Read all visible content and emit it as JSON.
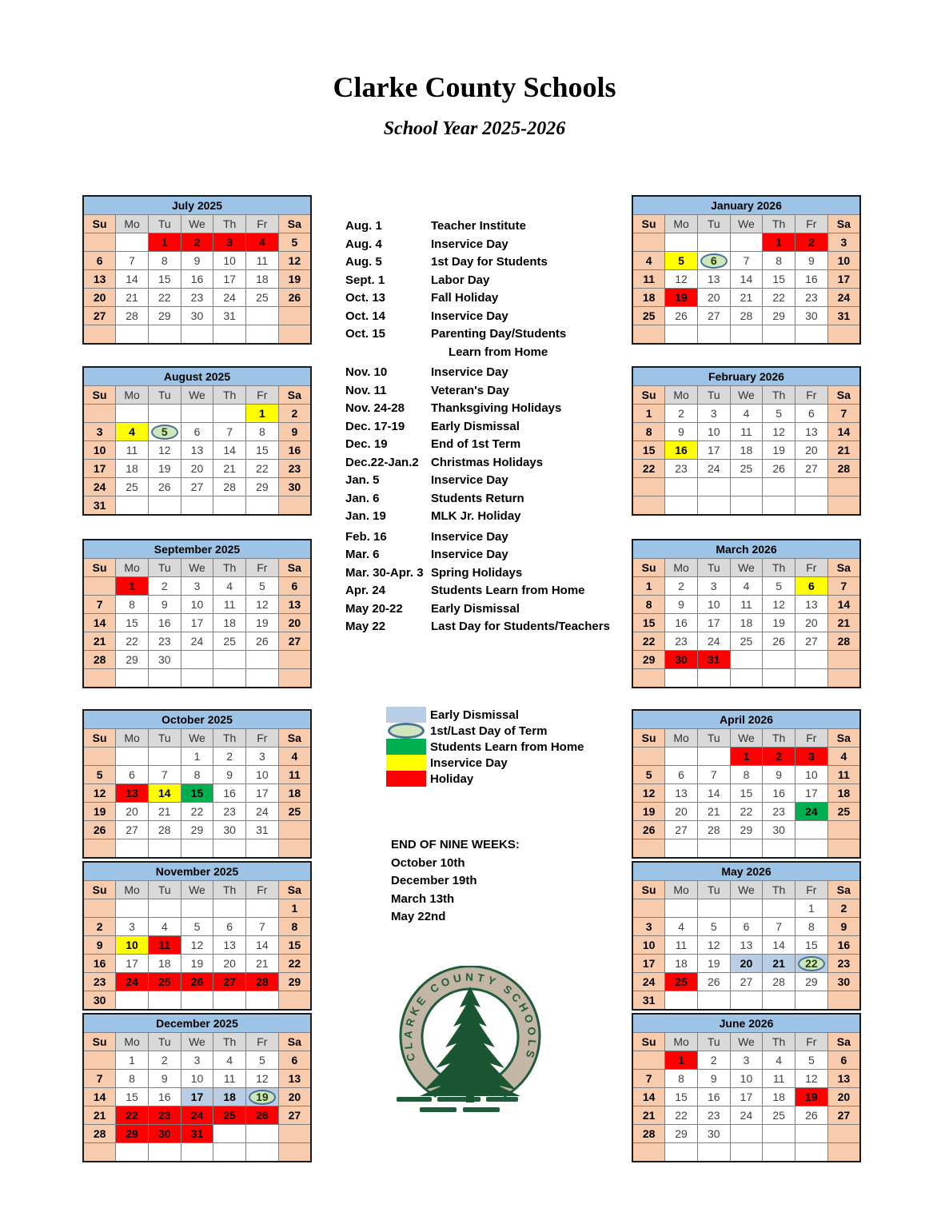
{
  "page": {
    "title": "Clarke County Schools",
    "subtitle": "School Year 2025-2026"
  },
  "colors": {
    "month_header_blue": "#9DC3E6",
    "weekend_peach": "#F8CBAD",
    "weekday_header_gray": "#D9D9D9",
    "holiday_red": "#FF0000",
    "inservice_yellow": "#FFFF00",
    "learn_from_home_green": "#00B050",
    "early_dismissal_blue": "#B9CDE5",
    "term_oval_fill": "#cfe6bc",
    "term_oval_border": "#4a7296",
    "logo_green": "#1F5C3B",
    "logo_tan": "#C4B6A5"
  },
  "day_headers": [
    "Su",
    "Mo",
    "Tu",
    "We",
    "Th",
    "Fr",
    "Sa"
  ],
  "months_left": [
    {
      "title": "July 2025",
      "weeks": [
        [
          "",
          "",
          "1|h",
          "2|h",
          "3|h",
          "4|h",
          "5"
        ],
        [
          "6",
          "7",
          "8",
          "9",
          "10",
          "11",
          "12"
        ],
        [
          "13",
          "14",
          "15",
          "16",
          "17",
          "18",
          "19"
        ],
        [
          "20",
          "21",
          "22",
          "23",
          "24",
          "25",
          "26"
        ],
        [
          "27",
          "28",
          "29",
          "30",
          "31",
          "",
          ""
        ],
        [
          "",
          "",
          "",
          "",
          "",
          "",
          ""
        ]
      ]
    },
    {
      "title": "August 2025",
      "weeks": [
        [
          "",
          "",
          "",
          "",
          "",
          "1|i",
          "2"
        ],
        [
          "3",
          "4|i",
          "5|t",
          "6",
          "7",
          "8",
          "9"
        ],
        [
          "10",
          "11",
          "12",
          "13",
          "14",
          "15",
          "16"
        ],
        [
          "17",
          "18",
          "19",
          "20",
          "21",
          "22",
          "23"
        ],
        [
          "24",
          "25",
          "26",
          "27",
          "28",
          "29",
          "30"
        ],
        [
          "31",
          "",
          "",
          "",
          "",
          "",
          ""
        ]
      ]
    },
    {
      "title": "September 2025",
      "weeks": [
        [
          "",
          "1|h",
          "2",
          "3",
          "4",
          "5",
          "6"
        ],
        [
          "7",
          "8",
          "9",
          "10",
          "11",
          "12",
          "13"
        ],
        [
          "14",
          "15",
          "16",
          "17",
          "18",
          "19",
          "20"
        ],
        [
          "21",
          "22",
          "23",
          "24",
          "25",
          "26",
          "27"
        ],
        [
          "28",
          "29",
          "30",
          "",
          "",
          "",
          ""
        ],
        [
          "",
          "",
          "",
          "",
          "",
          "",
          ""
        ]
      ]
    },
    {
      "title": "October 2025",
      "weeks": [
        [
          "",
          "",
          "",
          "1",
          "2",
          "3",
          "4"
        ],
        [
          "5",
          "6",
          "7",
          "8",
          "9",
          "10",
          "11"
        ],
        [
          "12",
          "13|h",
          "14|i",
          "15|g",
          "16",
          "17",
          "18"
        ],
        [
          "19",
          "20",
          "21",
          "22",
          "23",
          "24",
          "25"
        ],
        [
          "26",
          "27",
          "28",
          "29",
          "30",
          "31",
          ""
        ],
        [
          "",
          "",
          "",
          "",
          "",
          "",
          ""
        ]
      ]
    },
    {
      "title": "November 2025",
      "weeks": [
        [
          "",
          "",
          "",
          "",
          "",
          "",
          "1"
        ],
        [
          "2",
          "3",
          "4",
          "5",
          "6",
          "7",
          "8"
        ],
        [
          "9",
          "10|i",
          "11|h",
          "12",
          "13",
          "14",
          "15"
        ],
        [
          "16",
          "17",
          "18",
          "19",
          "20",
          "21",
          "22"
        ],
        [
          "23",
          "24|h",
          "25|h",
          "26|h",
          "27|h",
          "28|h",
          "29"
        ],
        [
          "30",
          "",
          "",
          "",
          "",
          "",
          ""
        ]
      ]
    },
    {
      "title": "December 2025",
      "weeks": [
        [
          "",
          "1",
          "2",
          "3",
          "4",
          "5",
          "6"
        ],
        [
          "7",
          "8",
          "9",
          "10",
          "11",
          "12",
          "13"
        ],
        [
          "14",
          "15",
          "16",
          "17|e",
          "18|e",
          "19|et",
          "20"
        ],
        [
          "21",
          "22|h",
          "23|h",
          "24|h",
          "25|h",
          "26|h",
          "27"
        ],
        [
          "28",
          "29|h",
          "30|h",
          "31|h",
          "",
          "",
          ""
        ],
        [
          "",
          "",
          "",
          "",
          "",
          "",
          ""
        ]
      ]
    }
  ],
  "months_right": [
    {
      "title": "January 2026",
      "weeks": [
        [
          "",
          "",
          "",
          "",
          "1|h",
          "2|h",
          "3"
        ],
        [
          "4",
          "5|i",
          "6|t",
          "7",
          "8",
          "9",
          "10"
        ],
        [
          "11",
          "12",
          "13",
          "14",
          "15",
          "16",
          "17"
        ],
        [
          "18",
          "19|h",
          "20",
          "21",
          "22",
          "23",
          "24"
        ],
        [
          "25",
          "26",
          "27",
          "28",
          "29",
          "30",
          "31"
        ],
        [
          "",
          "",
          "",
          "",
          "",
          "",
          ""
        ]
      ]
    },
    {
      "title": "February 2026",
      "weeks": [
        [
          "1",
          "2",
          "3",
          "4",
          "5",
          "6",
          "7"
        ],
        [
          "8",
          "9",
          "10",
          "11",
          "12",
          "13",
          "14"
        ],
        [
          "15",
          "16|i",
          "17",
          "18",
          "19",
          "20",
          "21"
        ],
        [
          "22",
          "23",
          "24",
          "25",
          "26",
          "27",
          "28"
        ],
        [
          "",
          "",
          "",
          "",
          "",
          "",
          ""
        ],
        [
          "",
          "",
          "",
          "",
          "",
          "",
          ""
        ]
      ]
    },
    {
      "title": "March 2026",
      "weeks": [
        [
          "1",
          "2",
          "3",
          "4",
          "5",
          "6|i",
          "7"
        ],
        [
          "8",
          "9",
          "10",
          "11",
          "12",
          "13",
          "14"
        ],
        [
          "15",
          "16",
          "17",
          "18",
          "19",
          "20",
          "21"
        ],
        [
          "22",
          "23",
          "24",
          "25",
          "26",
          "27",
          "28"
        ],
        [
          "29",
          "30|h",
          "31|h",
          "",
          "",
          "",
          ""
        ],
        [
          "",
          "",
          "",
          "",
          "",
          "",
          ""
        ]
      ]
    },
    {
      "title": "April 2026",
      "weeks": [
        [
          "",
          "",
          "",
          "1|h",
          "2|h",
          "3|h",
          "4"
        ],
        [
          "5",
          "6",
          "7",
          "8",
          "9",
          "10",
          "11"
        ],
        [
          "12",
          "13",
          "14",
          "15",
          "16",
          "17",
          "18"
        ],
        [
          "19",
          "20",
          "21",
          "22",
          "23",
          "24|g",
          "25"
        ],
        [
          "26",
          "27",
          "28",
          "29",
          "30",
          "",
          ""
        ],
        [
          "",
          "",
          "",
          "",
          "",
          "",
          ""
        ]
      ]
    },
    {
      "title": "May 2026",
      "weeks": [
        [
          "",
          "",
          "",
          "",
          "",
          "1",
          "2"
        ],
        [
          "3",
          "4",
          "5",
          "6",
          "7",
          "8",
          "9"
        ],
        [
          "10",
          "11",
          "12",
          "13",
          "14",
          "15",
          "16"
        ],
        [
          "17",
          "18",
          "19",
          "20|e",
          "21|e",
          "22|et",
          "23"
        ],
        [
          "24",
          "25|h",
          "26",
          "27",
          "28",
          "29",
          "30"
        ],
        [
          "31",
          "",
          "",
          "",
          "",
          "",
          ""
        ]
      ]
    },
    {
      "title": "June 2026",
      "weeks": [
        [
          "",
          "1|h",
          "2",
          "3",
          "4",
          "5",
          "6"
        ],
        [
          "7",
          "8",
          "9",
          "10",
          "11",
          "12",
          "13"
        ],
        [
          "14",
          "15",
          "16",
          "17",
          "18",
          "19|h",
          "20"
        ],
        [
          "21",
          "22",
          "23",
          "24",
          "25",
          "26",
          "27"
        ],
        [
          "28",
          "29",
          "30",
          "",
          "",
          "",
          ""
        ],
        [
          "",
          "",
          "",
          "",
          "",
          "",
          ""
        ]
      ]
    }
  ],
  "events": [
    {
      "date": "Aug. 1",
      "desc": "Teacher Institute"
    },
    {
      "date": "Aug. 4",
      "desc": "Inservice Day"
    },
    {
      "date": "Aug. 5",
      "desc": "1st Day for Students"
    },
    {
      "date": "Sept. 1",
      "desc": "Labor Day"
    },
    {
      "date": "Oct. 13",
      "desc": "Fall Holiday"
    },
    {
      "date": "Oct. 14",
      "desc": "Inservice Day"
    },
    {
      "date": "Oct. 15",
      "desc": "Parenting Day/Students",
      "desc2": "Learn from Home"
    },
    {
      "date": "Nov. 10",
      "desc": "Inservice Day",
      "gap": true
    },
    {
      "date": "Nov. 11",
      "desc": "Veteran's Day"
    },
    {
      "date": "Nov. 24-28",
      "desc": "Thanksgiving Holidays"
    },
    {
      "date": "Dec. 17-19",
      "desc": "Early Dismissal"
    },
    {
      "date": "Dec. 19",
      "desc": "End of 1st Term"
    },
    {
      "date": "Dec.22-Jan.2",
      "desc": "Christmas Holidays"
    },
    {
      "date": "Jan. 5",
      "desc": "Inservice Day"
    },
    {
      "date": "Jan. 6",
      "desc": "Students Return"
    },
    {
      "date": "Jan. 19",
      "desc": "MLK Jr. Holiday"
    },
    {
      "date": "Feb. 16",
      "desc": "Inservice Day",
      "gap": true
    },
    {
      "date": "Mar. 6",
      "desc": "Inservice Day"
    },
    {
      "date": "Mar. 30-Apr. 3",
      "desc": "Spring Holidays"
    },
    {
      "date": "Apr. 24",
      "desc": "Students Learn from Home"
    },
    {
      "date": "May 20-22",
      "desc": "Early Dismissal"
    },
    {
      "date": "May 22",
      "desc": "Last Day for Students/Teachers"
    }
  ],
  "legend": [
    {
      "type": "swatch",
      "cls": "early",
      "label": "Early Dismissal"
    },
    {
      "type": "oval",
      "label": "1st/Last Day of Term"
    },
    {
      "type": "swatch",
      "cls": "home",
      "label": "Students Learn from Home"
    },
    {
      "type": "swatch",
      "cls": "ins",
      "label": "Inservice Day"
    },
    {
      "type": "swatch",
      "cls": "hol",
      "label": "Holiday"
    }
  ],
  "nine_weeks": {
    "heading": "END OF NINE WEEKS:",
    "dates": [
      "October 10th",
      "December 19th",
      "March 13th",
      "May 22nd"
    ]
  },
  "logo": {
    "arc_text": "CLARKE COUNTY SCHOOLS"
  }
}
